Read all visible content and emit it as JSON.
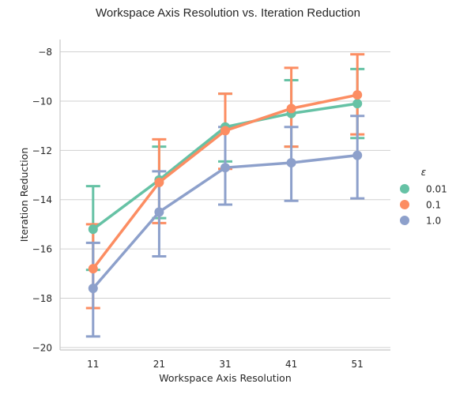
{
  "chart_data": {
    "type": "line",
    "title": "Workspace Axis Resolution vs. Iteration Reduction",
    "xlabel": "Workspace Axis Resolution",
    "ylabel": "Iteration Reduction",
    "categories": [
      "11",
      "21",
      "31",
      "41",
      "51"
    ],
    "ylim": [
      -20.1,
      -7.5
    ],
    "yticks": [
      -20,
      -18,
      -16,
      -14,
      -12,
      -10,
      -8
    ],
    "ytick_labels": [
      "−20",
      "−18",
      "−16",
      "−14",
      "−12",
      "−10",
      "−8"
    ],
    "grid": true,
    "legend": {
      "title": "ε",
      "placement": "right"
    },
    "series": [
      {
        "name": "0.01",
        "color": "#66c2a5",
        "values": [
          -15.2,
          -13.2,
          -11.05,
          -10.5,
          -10.1
        ],
        "ci_low": [
          -16.85,
          -14.75,
          -12.45,
          -11.85,
          -11.5
        ],
        "ci_high": [
          -13.45,
          -11.85,
          -9.7,
          -9.15,
          -8.7
        ]
      },
      {
        "name": "0.1",
        "color": "#fc8d62",
        "values": [
          -16.8,
          -13.3,
          -11.2,
          -10.3,
          -9.75
        ],
        "ci_low": [
          -18.4,
          -14.95,
          -12.75,
          -11.85,
          -11.35
        ],
        "ci_high": [
          -15.0,
          -11.55,
          -9.7,
          -8.65,
          -8.1
        ]
      },
      {
        "name": "1.0",
        "color": "#8da0cb",
        "values": [
          -17.6,
          -14.5,
          -12.7,
          -12.5,
          -12.2
        ],
        "ci_low": [
          -19.55,
          -16.3,
          -14.2,
          -14.05,
          -13.95
        ],
        "ci_high": [
          -15.75,
          -12.85,
          -11.05,
          -11.05,
          -10.6
        ]
      }
    ]
  }
}
